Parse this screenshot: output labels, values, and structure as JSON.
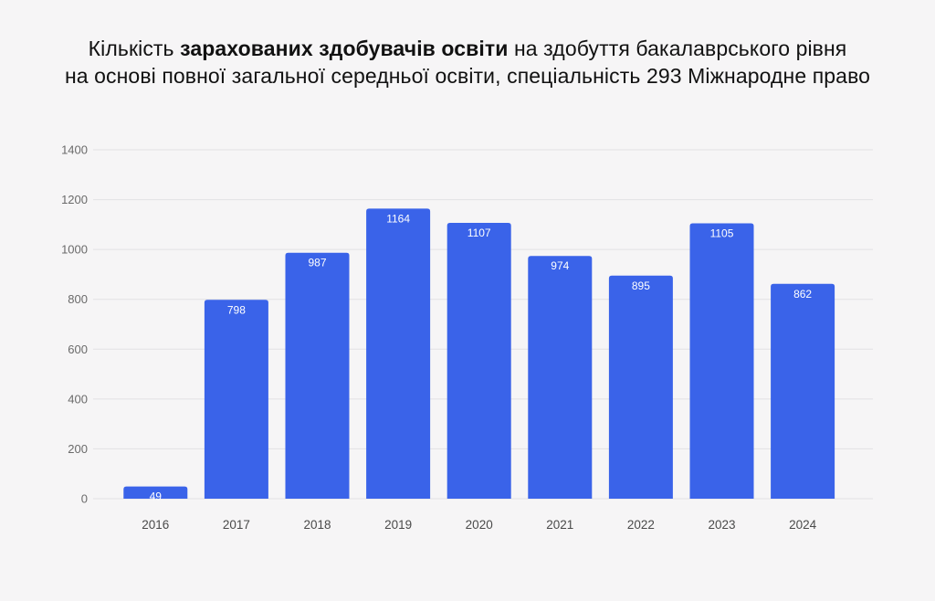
{
  "title": {
    "line1_pre": "Кількість ",
    "line1_bold": "зарахованих здобувачів освіти",
    "line1_post": " на здобуття бакалаврського рівня",
    "line2": "на основі повної загальної середньої освіти, спеціальність 293 Міжнародне право"
  },
  "colors": {
    "bar": "#3a63e9",
    "grid": "#e2e1e4",
    "background": "#f6f5f6"
  },
  "chart_data": {
    "type": "bar",
    "categories": [
      "2016",
      "2017",
      "2018",
      "2019",
      "2020",
      "2021",
      "2022",
      "2023",
      "2024"
    ],
    "values": [
      49,
      798,
      987,
      1164,
      1107,
      974,
      895,
      1105,
      862
    ],
    "data_labels": [
      "49",
      "798",
      "987",
      "1164",
      "1107",
      "974",
      "895",
      "1105",
      "862"
    ],
    "ylim": [
      0,
      1400
    ],
    "yticks": [
      0,
      200,
      400,
      600,
      800,
      1000,
      1200,
      1400
    ],
    "grid": true,
    "legend": "none"
  }
}
